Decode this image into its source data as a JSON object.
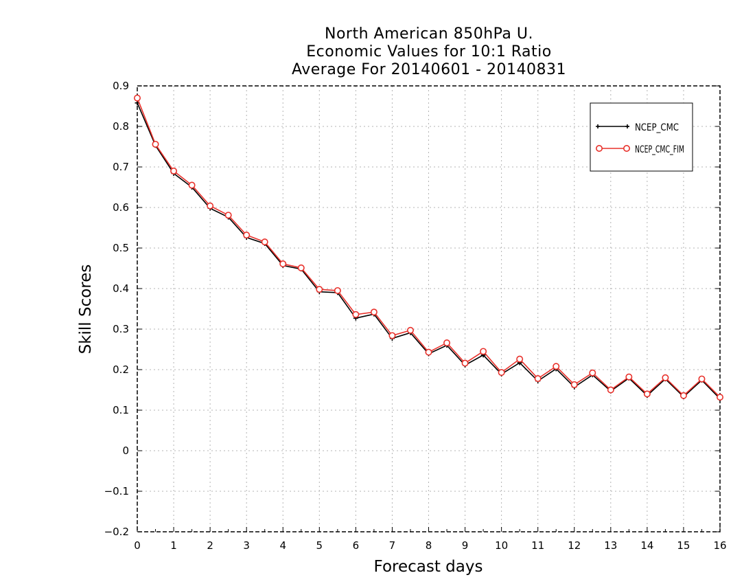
{
  "chart_data": {
    "type": "line",
    "title_lines": [
      "North American 850hPa U.",
      "Economic Values for 10:1 Ratio",
      "Average For 20140601 - 20140831"
    ],
    "xlabel": "Forecast days",
    "ylabel": "Skill Scores",
    "xlim": [
      0,
      16
    ],
    "ylim": [
      -0.2,
      0.9
    ],
    "x_ticks": [
      0,
      1,
      2,
      3,
      4,
      5,
      6,
      7,
      8,
      9,
      10,
      11,
      12,
      13,
      14,
      15,
      16
    ],
    "y_ticks": [
      -0.2,
      -0.1,
      0,
      0.1,
      0.2,
      0.3,
      0.4,
      0.5,
      0.6,
      0.7,
      0.8,
      0.9
    ],
    "y_tick_labels": [
      "−0.2",
      "−0.1",
      "0",
      "0.1",
      "0.2",
      "0.3",
      "0.4",
      "0.5",
      "0.6",
      "0.7",
      "0.8",
      "0.9"
    ],
    "grid": true,
    "legend_position": "top-right",
    "x": [
      0,
      0.5,
      1,
      1.5,
      2,
      2.5,
      3,
      3.5,
      4,
      4.5,
      5,
      5.5,
      6,
      6.5,
      7,
      7.5,
      8,
      8.5,
      9,
      9.5,
      10,
      10.5,
      11,
      11.5,
      12,
      12.5,
      13,
      13.5,
      14,
      14.5,
      15,
      15.5,
      16
    ],
    "series": [
      {
        "name": "NCEP_CMC",
        "color": "#000000",
        "marker": "plus",
        "values": [
          0.858,
          0.753,
          0.684,
          0.65,
          0.598,
          0.576,
          0.526,
          0.511,
          0.457,
          0.448,
          0.392,
          0.39,
          0.327,
          0.337,
          0.277,
          0.291,
          0.239,
          0.26,
          0.211,
          0.236,
          0.189,
          0.217,
          0.172,
          0.202,
          0.157,
          0.187,
          0.147,
          0.179,
          0.136,
          0.177,
          0.133,
          0.174,
          0.128
        ]
      },
      {
        "name": "NCEP_CMC_FIM",
        "color": "#e8302a",
        "marker": "circle",
        "values": [
          0.87,
          0.756,
          0.69,
          0.655,
          0.604,
          0.581,
          0.532,
          0.515,
          0.461,
          0.451,
          0.398,
          0.395,
          0.336,
          0.342,
          0.284,
          0.297,
          0.243,
          0.266,
          0.216,
          0.245,
          0.193,
          0.226,
          0.178,
          0.208,
          0.163,
          0.192,
          0.15,
          0.182,
          0.14,
          0.18,
          0.136,
          0.177,
          0.132
        ]
      }
    ]
  }
}
